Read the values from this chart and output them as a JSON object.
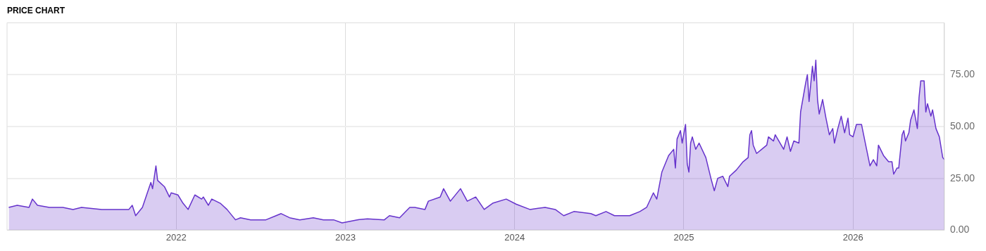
{
  "chart_data": {
    "type": "area",
    "title": "PRICE CHART",
    "x": [
      2021.01,
      2021.06,
      2021.13,
      2021.15,
      2021.18,
      2021.25,
      2021.33,
      2021.39,
      2021.44,
      2021.56,
      2021.72,
      2021.74,
      2021.76,
      2021.8,
      2021.85,
      2021.86,
      2021.88,
      2021.89,
      2021.93,
      2021.96,
      2021.97,
      2022.01,
      2022.04,
      2022.07,
      2022.11,
      2022.15,
      2022.16,
      2022.19,
      2022.21,
      2022.26,
      2022.3,
      2022.35,
      2022.38,
      2022.44,
      2022.53,
      2022.59,
      2022.62,
      2022.67,
      2022.73,
      2022.81,
      2022.87,
      2022.93,
      2022.98,
      2023.07,
      2023.13,
      2023.23,
      2023.26,
      2023.32,
      2023.38,
      2023.41,
      2023.47,
      2023.49,
      2023.56,
      2023.58,
      2023.62,
      2023.68,
      2023.72,
      2023.77,
      2023.82,
      2023.87,
      2023.95,
      2024.01,
      2024.09,
      2024.18,
      2024.24,
      2024.29,
      2024.35,
      2024.45,
      2024.48,
      2024.54,
      2024.59,
      2024.68,
      2024.74,
      2024.78,
      2024.82,
      2024.84,
      2024.87,
      2024.91,
      2024.94,
      2024.95,
      2024.96,
      2024.98,
      2024.99,
      2025.01,
      2025.02,
      2025.03,
      2025.04,
      2025.05,
      2025.07,
      2025.09,
      2025.13,
      2025.16,
      2025.18,
      2025.2,
      2025.23,
      2025.26,
      2025.27,
      2025.31,
      2025.35,
      2025.38,
      2025.39,
      2025.4,
      2025.41,
      2025.43,
      2025.46,
      2025.49,
      2025.5,
      2025.53,
      2025.54,
      2025.59,
      2025.61,
      2025.63,
      2025.65,
      2025.68,
      2025.69,
      2025.72,
      2025.73,
      2025.74,
      2025.76,
      2025.77,
      2025.78,
      2025.79,
      2025.8,
      2025.82,
      2025.84,
      2025.86,
      2025.88,
      2025.89,
      2025.91,
      2025.93,
      2025.95,
      2025.97,
      2025.98,
      2026.0,
      2026.02,
      2026.05,
      2026.07,
      2026.08,
      2026.1,
      2026.12,
      2026.14,
      2026.15,
      2026.18,
      2026.21,
      2026.23,
      2026.24,
      2026.26,
      2026.27,
      2026.29,
      2026.3,
      2026.31,
      2026.33,
      2026.34,
      2026.36,
      2026.38,
      2026.39,
      2026.4,
      2026.42,
      2026.43,
      2026.44,
      2026.46,
      2026.47,
      2026.49,
      2026.51,
      2026.53,
      2026.54
    ],
    "series": [
      {
        "color": "#6633cc",
        "values": [
          11,
          12,
          11,
          15,
          12,
          11,
          11,
          10,
          11,
          10,
          10,
          12,
          7,
          11,
          23,
          20,
          31,
          24,
          21,
          16,
          18,
          17,
          13,
          10,
          17,
          15,
          16,
          12,
          15,
          13,
          10,
          5,
          6,
          5,
          5,
          7,
          8,
          6,
          5,
          6,
          5,
          5,
          3.5,
          5,
          5.5,
          5,
          7,
          6,
          11,
          11,
          10,
          14,
          16,
          20,
          14,
          20,
          14,
          16,
          10,
          13,
          15,
          12.5,
          10,
          11,
          10,
          7,
          9,
          8,
          7,
          9,
          7,
          7,
          9,
          11,
          18,
          15,
          28,
          36,
          39,
          30,
          44,
          48,
          42,
          51,
          32,
          28,
          42,
          45,
          39,
          42,
          35,
          25,
          19,
          25,
          26,
          21,
          26,
          29,
          33,
          35,
          46,
          48,
          41,
          37,
          39,
          41,
          45,
          43,
          46,
          39,
          45,
          38,
          43,
          42,
          57,
          71,
          75,
          62,
          79,
          72,
          82,
          63,
          56,
          63,
          54,
          46,
          49,
          42,
          49,
          55,
          47,
          54,
          46,
          45,
          51,
          51,
          43,
          39,
          31,
          34,
          31,
          41,
          36,
          33,
          33,
          27,
          30,
          30,
          46,
          48,
          43,
          47,
          53,
          58,
          49,
          64,
          72,
          72,
          57,
          61,
          55,
          58,
          49,
          45,
          35,
          34
        ]
      }
    ],
    "xlim": [
      2021.0,
      2026.54
    ],
    "xticks": [
      2022,
      2023,
      2024,
      2025,
      2026
    ],
    "ylim": [
      0,
      100
    ],
    "yticks": [
      {
        "value": 0,
        "label": "0.00"
      },
      {
        "value": 25,
        "label": "25.00"
      },
      {
        "value": 50,
        "label": "50.00"
      },
      {
        "value": 75,
        "label": "75.00"
      }
    ],
    "grid": true,
    "legend": false,
    "marker": "none",
    "line_style": "solid"
  }
}
